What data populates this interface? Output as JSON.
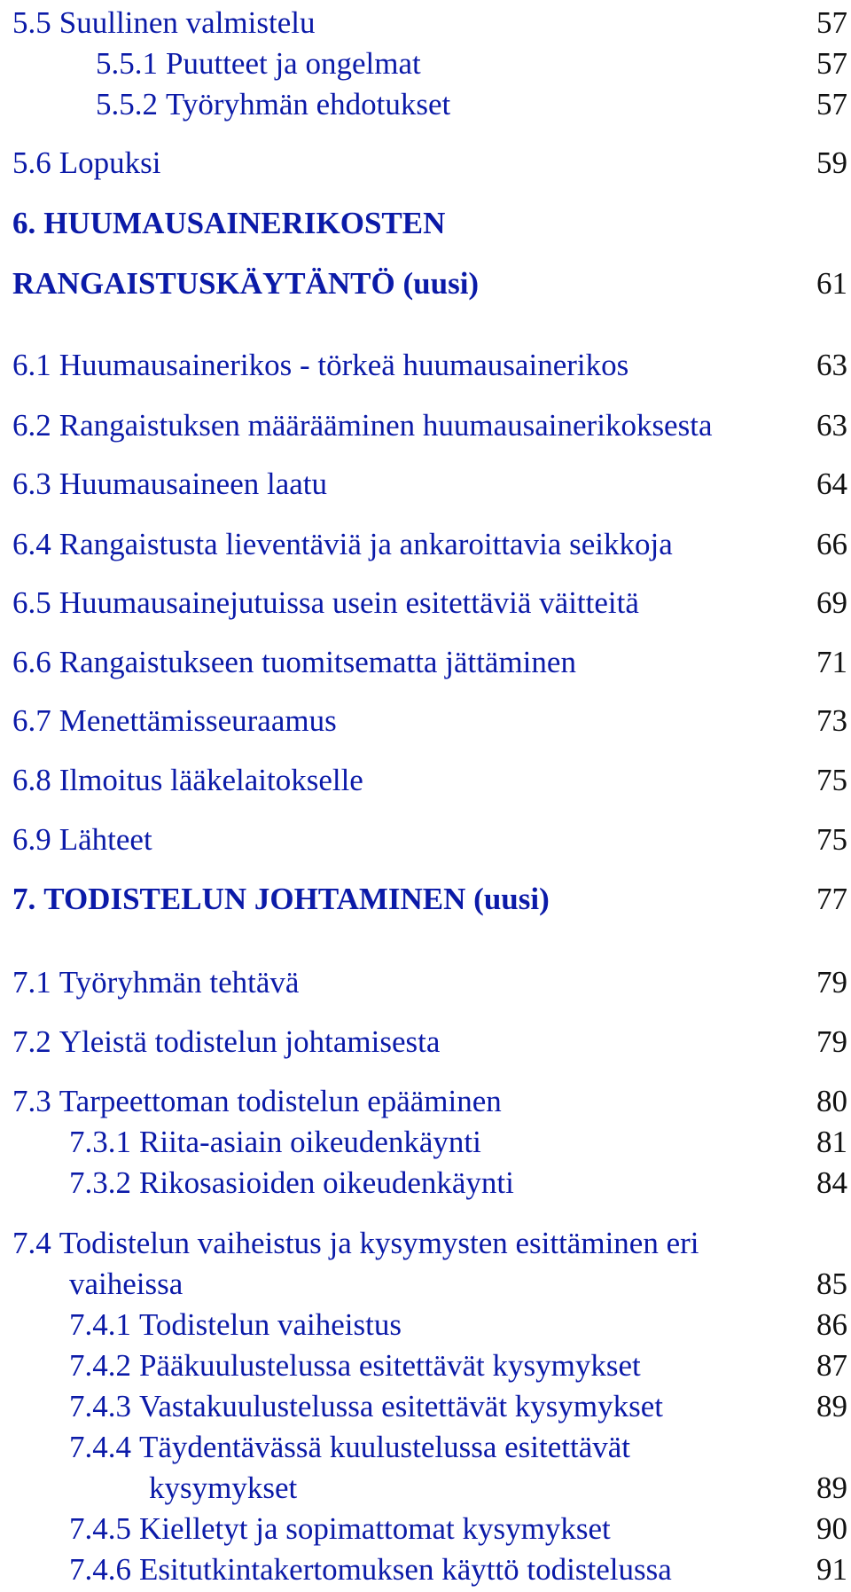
{
  "colors": {
    "link": "#0b1aa8",
    "page_number": "#111111"
  },
  "toc": {
    "entries": [
      {
        "number": "5.5",
        "title": "Suullinen valmistelu",
        "page": "57"
      },
      {
        "number": "5.5.1",
        "title": "Puutteet ja ongelmat",
        "page": "57"
      },
      {
        "number": "5.5.2",
        "title": "Työryhmän ehdotukset",
        "page": "57"
      },
      {
        "number": "5.6",
        "title": "Lopuksi",
        "page": "59"
      },
      {
        "number": "6.",
        "title": "HUUMAUSAINERIKOSTEN",
        "page": ""
      },
      {
        "number": "",
        "title": "RANGAISTUSKÄYTÄNTÖ (uusi)",
        "page": "61"
      },
      {
        "number": "6.1",
        "title": "Huumausainerikos - törkeä huumausainerikos",
        "page": "63"
      },
      {
        "number": "6.2",
        "title": "Rangaistuksen määrääminen huumausainerikoksesta",
        "page": "63"
      },
      {
        "number": "6.3",
        "title": "Huumausaineen laatu",
        "page": "64"
      },
      {
        "number": "6.4",
        "title": "Rangaistusta lieventäviä ja ankaroittavia seikkoja",
        "page": "66"
      },
      {
        "number": "6.5",
        "title": "Huumausainejutuissa usein esitettäviä väitteitä",
        "page": "69"
      },
      {
        "number": "6.6",
        "title": "Rangaistukseen tuomitsematta jättäminen",
        "page": "71"
      },
      {
        "number": "6.7",
        "title": "Menettämisseuraamus",
        "page": "73"
      },
      {
        "number": "6.8",
        "title": "Ilmoitus lääkelaitokselle",
        "page": "75"
      },
      {
        "number": "6.9",
        "title": "Lähteet",
        "page": "75"
      },
      {
        "number": "7.",
        "title": "TODISTELUN JOHTAMINEN (uusi)",
        "page": "77"
      },
      {
        "number": "7.1",
        "title": "Työryhmän tehtävä",
        "page": "79"
      },
      {
        "number": "7.2",
        "title": "Yleistä todistelun johtamisesta",
        "page": "79"
      },
      {
        "number": "7.3",
        "title": "Tarpeettoman todistelun epääminen",
        "page": "80"
      },
      {
        "number": "7.3.1",
        "title": "Riita-asiain oikeudenkäynti",
        "page": "81"
      },
      {
        "number": "7.3.2",
        "title": "Rikosasioiden oikeudenkäynti",
        "page": "84"
      },
      {
        "number": "7.4",
        "title": "Todistelun vaiheistus ja kysymysten esittäminen eri",
        "page": ""
      },
      {
        "number": "",
        "title": "vaiheissa",
        "page": "85"
      },
      {
        "number": "7.4.1",
        "title": "Todistelun vaiheistus",
        "page": "86"
      },
      {
        "number": "7.4.2",
        "title": "Pääkuulustelussa esitettävät kysymykset",
        "page": "87"
      },
      {
        "number": "7.4.3",
        "title": "Vastakuulustelussa esitettävät kysymykset",
        "page": "89"
      },
      {
        "number": "7.4.4",
        "title": "Täydentävässä kuulustelussa esitettävät",
        "page": ""
      },
      {
        "number": "",
        "title": "kysymykset",
        "page": "89"
      },
      {
        "number": "7.4.5",
        "title": "Kielletyt ja sopimattomat kysymykset",
        "page": "90"
      },
      {
        "number": "7.4.6",
        "title": "Esitutkintakertomuksen käyttö todistelussa",
        "page": "91"
      }
    ]
  }
}
